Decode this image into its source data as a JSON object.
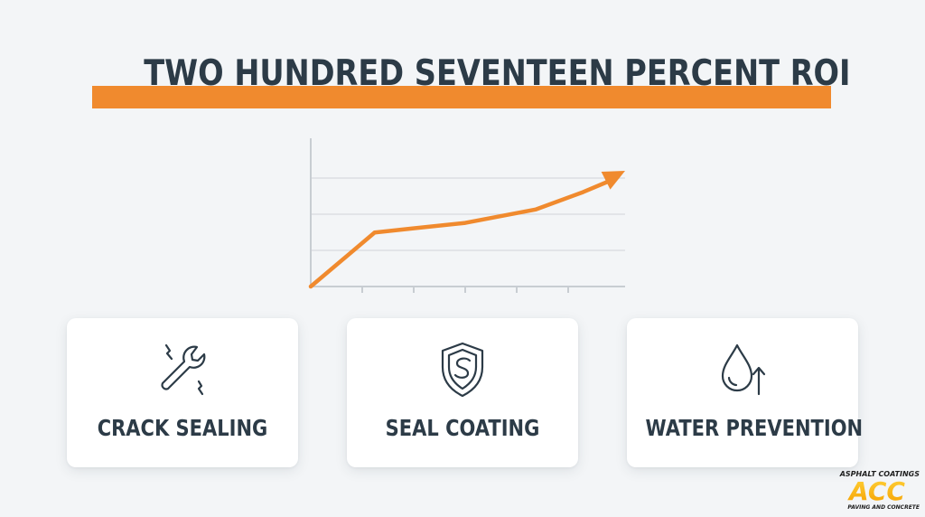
{
  "title": "TWO HUNDRED SEVENTEEN PERCENT ROI",
  "colors": {
    "accent": "#f08a2e",
    "text": "#2c3b47",
    "background": "#f3f5f7",
    "card": "#ffffff",
    "axis": "#c8cdd2"
  },
  "chart_data": {
    "type": "line",
    "x": [
      0,
      1,
      2,
      3,
      4,
      5,
      6
    ],
    "values": [
      0,
      56,
      60,
      66,
      80,
      98,
      120
    ],
    "ylim": [
      0,
      150
    ],
    "grid": true,
    "arrow_end": true
  },
  "cards": [
    {
      "label": "CRACK SEALING",
      "icon": "wrench-icon"
    },
    {
      "label": "SEAL COATING",
      "icon": "shield-icon"
    },
    {
      "label": "WATER PREVENTION",
      "icon": "water-drop-icon"
    }
  ],
  "logo": {
    "top_text": "ASPHALT COATINGS",
    "main_text": "ACC",
    "bottom_text": "PAVING AND CONCRETE"
  }
}
